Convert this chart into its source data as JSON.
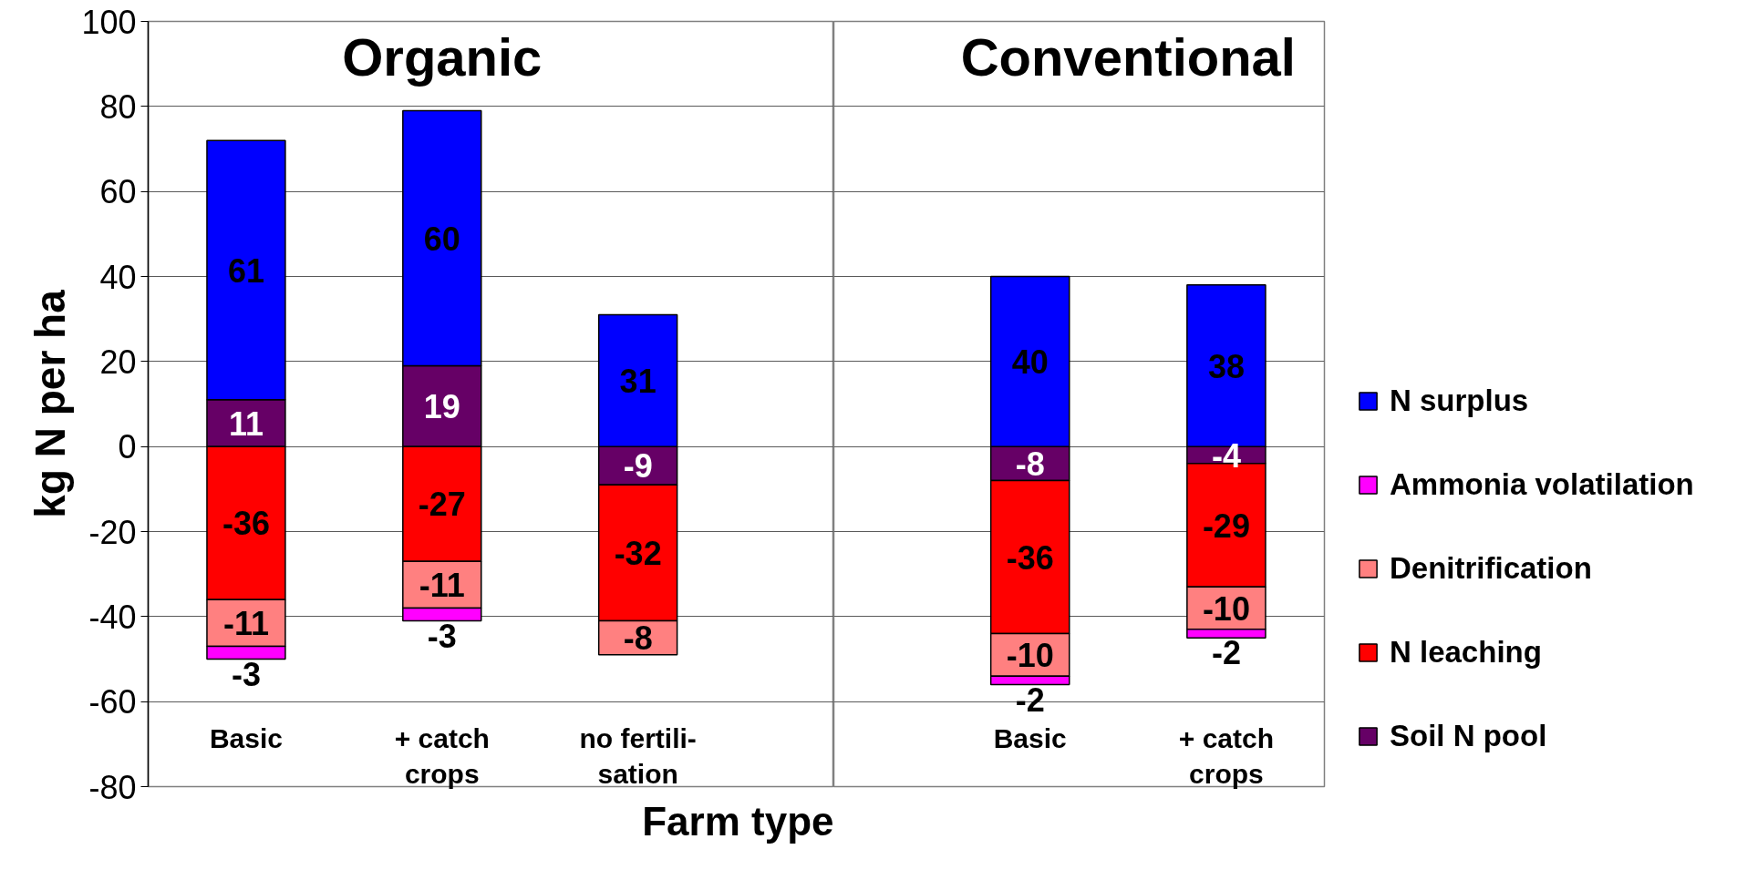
{
  "chart_data": [
    {
      "type": "bar",
      "title": "Organic",
      "xlabel": "Farm type",
      "ylabel": "kg N per ha",
      "categories": [
        "Basic",
        "+ catch\ncrops",
        "no fertili-\nsation"
      ],
      "stacked": true,
      "series": [
        {
          "color": "#660066",
          "values": [
            11,
            19,
            -9
          ]
        },
        {
          "color": "#ff0000",
          "values": [
            -36,
            -27,
            -32
          ]
        },
        {
          "color": "#ff8080",
          "values": [
            -11,
            -11,
            -8
          ]
        },
        {
          "color": "#ff00ff",
          "values": [
            -3,
            -3,
            null
          ]
        },
        {
          "color": "#0000ff",
          "values": [
            61,
            60,
            31
          ]
        }
      ],
      "ylim": [
        -80,
        100
      ],
      "yticks": [
        -80,
        -60,
        -40,
        -20,
        0,
        20,
        40,
        60,
        80,
        100
      ],
      "grid": "y",
      "data_labels": true
    },
    {
      "type": "bar",
      "title": "Conventional",
      "categories": [
        "Basic",
        "+ catch\ncrops"
      ],
      "stacked": true,
      "series": [
        {
          "name": "Soil N pool",
          "color": "#660066",
          "values": [
            -8,
            -4
          ]
        },
        {
          "name": "N leaching",
          "color": "#ff0000",
          "values": [
            -36,
            -29
          ]
        },
        {
          "name": "Denitrification",
          "color": "#ff8080",
          "values": [
            -10,
            -10
          ]
        },
        {
          "name": "Ammonia volatilation",
          "color": "#ff00ff",
          "values": [
            -2,
            -2
          ]
        },
        {
          "name": "N surplus",
          "color": "#0000ff",
          "values": [
            40,
            38
          ]
        }
      ],
      "ylim": [
        -80,
        100
      ],
      "yticks": [
        -80,
        -60,
        -40,
        -20,
        0,
        20,
        40,
        60,
        80,
        100
      ],
      "tick_labels": "x",
      "grid": "y",
      "legend": "right",
      "data_labels": true
    }
  ]
}
